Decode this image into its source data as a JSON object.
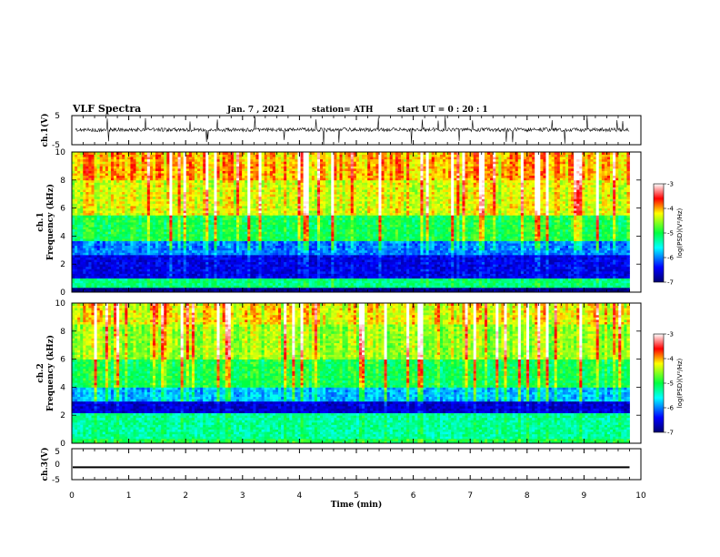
{
  "header": {
    "title": "VLF Spectra",
    "date": "Jan. 7 , 2021",
    "station": "station= ATH",
    "start_time": "start  UT =   0 : 20 : 1"
  },
  "chart_data": [
    {
      "type": "line",
      "name": "ch1-waveform",
      "ylabel": "ch.1(V)",
      "ylim": [
        -5,
        5
      ],
      "yticks": [
        "5",
        "-5"
      ],
      "xlim": [
        0,
        10
      ],
      "x_end_of_data": 9.8,
      "level_typical_V": [
        -0.5,
        0.8
      ],
      "grid": false
    },
    {
      "type": "heatmap",
      "name": "ch1-spectrogram",
      "ylabel": "ch.1\nFrequency  (kHz)",
      "ylim": [
        0,
        10
      ],
      "yticks": [
        "0",
        "2",
        "4",
        "6",
        "8",
        "10"
      ],
      "xlim": [
        0,
        10
      ],
      "x_end_of_data": 9.8,
      "colorbar": {
        "label": "log(PSD)(V²/Hz)",
        "range": [
          -7,
          -3
        ],
        "ticks": [
          "-3",
          "-4",
          "-5",
          "-6",
          "-7"
        ]
      },
      "bands_kHz": [
        {
          "from": 0,
          "to": 0.4,
          "level": -7
        },
        {
          "from": 0.4,
          "to": 1.0,
          "level": -5.2
        },
        {
          "from": 1.0,
          "to": 2.6,
          "level": -6.5
        },
        {
          "from": 2.6,
          "to": 3.6,
          "level": -6.0
        },
        {
          "from": 3.6,
          "to": 5.5,
          "level": -5.0
        },
        {
          "from": 5.5,
          "to": 8.0,
          "level": -4.3
        },
        {
          "from": 8.0,
          "to": 10.0,
          "level": -4.0
        }
      ]
    },
    {
      "type": "heatmap",
      "name": "ch2-spectrogram",
      "ylabel": "ch.2\nFrequency  (kHz)",
      "ylim": [
        0,
        10
      ],
      "yticks": [
        "0",
        "2",
        "4",
        "6",
        "8",
        "10"
      ],
      "xlim": [
        0,
        10
      ],
      "x_end_of_data": 9.8,
      "colorbar": {
        "label": "log(PSD)(V²/Hz)",
        "range": [
          -7,
          -3
        ],
        "ticks": [
          "-3",
          "-4",
          "-5",
          "-6",
          "-7"
        ]
      },
      "bands_kHz": [
        {
          "from": 0,
          "to": 0.4,
          "level": -5.0
        },
        {
          "from": 0.4,
          "to": 2.2,
          "level": -5.3
        },
        {
          "from": 2.2,
          "to": 3.0,
          "level": -6.6
        },
        {
          "from": 3.0,
          "to": 4.0,
          "level": -5.8
        },
        {
          "from": 4.0,
          "to": 6.0,
          "level": -5.0
        },
        {
          "from": 6.0,
          "to": 8.5,
          "level": -4.5
        },
        {
          "from": 8.5,
          "to": 10.0,
          "level": -4.2
        }
      ]
    },
    {
      "type": "line",
      "name": "ch3-waveform",
      "ylabel": "ch.3(V)",
      "ylim": [
        -5,
        5
      ],
      "yticks": [
        "5",
        "0",
        "-5"
      ],
      "xlim": [
        0,
        10
      ],
      "x_end_of_data": 9.8,
      "level_typical_V": [
        -1.3,
        -0.7
      ],
      "grid": false
    }
  ],
  "x_axis": {
    "label": "Time  (min)",
    "ticks": [
      "0",
      "1",
      "2",
      "3",
      "4",
      "5",
      "6",
      "7",
      "8",
      "9",
      "10"
    ],
    "range": [
      0,
      10
    ]
  }
}
